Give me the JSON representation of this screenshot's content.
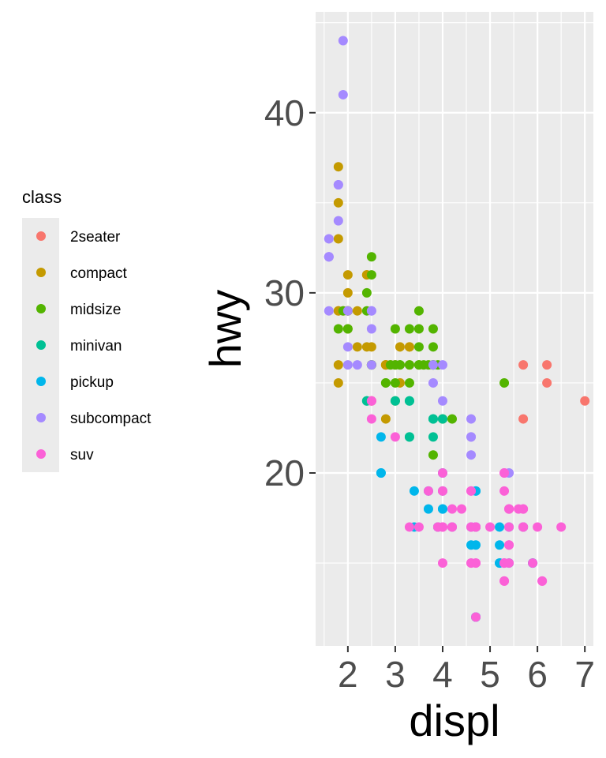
{
  "chart_data": {
    "type": "scatter",
    "xlabel": "displ",
    "ylabel": "hwy",
    "xlim": [
      1.32,
      7.18
    ],
    "ylim": [
      10.4,
      45.6
    ],
    "x_ticks": [
      2,
      3,
      4,
      5,
      6,
      7
    ],
    "y_ticks": [
      20,
      30,
      40
    ],
    "grid": true,
    "legend": {
      "title": "class",
      "position": "left",
      "entries": [
        {
          "label": "2seater",
          "color": "#F8766D"
        },
        {
          "label": "compact",
          "color": "#C49A00"
        },
        {
          "label": "midsize",
          "color": "#53B400"
        },
        {
          "label": "minivan",
          "color": "#00C094"
        },
        {
          "label": "pickup",
          "color": "#00B6EB"
        },
        {
          "label": "subcompact",
          "color": "#A58AFF"
        },
        {
          "label": "suv",
          "color": "#FB61D7"
        }
      ]
    },
    "series": [
      {
        "name": "2seater",
        "color": "#F8766D",
        "points": [
          [
            5.7,
            26
          ],
          [
            5.7,
            23
          ],
          [
            6.2,
            26
          ],
          [
            6.2,
            25
          ],
          [
            7.0,
            24
          ]
        ]
      },
      {
        "name": "compact",
        "color": "#C49A00",
        "points": [
          [
            1.8,
            29
          ],
          [
            1.8,
            29
          ],
          [
            2.0,
            31
          ],
          [
            2.0,
            30
          ],
          [
            2.8,
            26
          ],
          [
            2.8,
            26
          ],
          [
            3.1,
            27
          ],
          [
            1.8,
            26
          ],
          [
            1.8,
            25
          ],
          [
            2.0,
            28
          ],
          [
            2.0,
            29
          ],
          [
            2.8,
            26
          ],
          [
            3.1,
            25
          ],
          [
            2.2,
            27
          ],
          [
            2.2,
            29
          ],
          [
            2.4,
            31
          ],
          [
            2.4,
            31
          ],
          [
            3.0,
            26
          ],
          [
            3.3,
            26
          ],
          [
            3.3,
            27
          ],
          [
            3.3,
            27
          ],
          [
            1.8,
            35
          ],
          [
            1.8,
            37
          ],
          [
            1.8,
            33
          ],
          [
            2.5,
            27
          ],
          [
            2.5,
            26
          ],
          [
            2.5,
            24
          ],
          [
            2.8,
            23
          ],
          [
            1.9,
            29
          ],
          [
            2.0,
            29
          ],
          [
            2.4,
            27
          ],
          [
            2.9,
            26
          ],
          [
            2.0,
            29
          ]
        ]
      },
      {
        "name": "midsize",
        "color": "#53B400",
        "points": [
          [
            2.4,
            29
          ],
          [
            2.8,
            25
          ],
          [
            3.1,
            26
          ],
          [
            1.9,
            29
          ],
          [
            2.0,
            29
          ],
          [
            2.5,
            26
          ],
          [
            2.5,
            26
          ],
          [
            3.3,
            26
          ],
          [
            2.4,
            30
          ],
          [
            2.5,
            32
          ],
          [
            3.5,
            29
          ],
          [
            3.5,
            27
          ],
          [
            3.0,
            26
          ],
          [
            3.0,
            25
          ],
          [
            3.5,
            26
          ],
          [
            3.3,
            28
          ],
          [
            3.8,
            27
          ],
          [
            3.8,
            26
          ],
          [
            3.8,
            28
          ],
          [
            3.8,
            26
          ],
          [
            3.1,
            26
          ],
          [
            3.5,
            28
          ],
          [
            3.5,
            26
          ],
          [
            3.6,
            26
          ],
          [
            3.0,
            28
          ],
          [
            3.8,
            26
          ],
          [
            5.3,
            25
          ],
          [
            2.0,
            28
          ],
          [
            2.5,
            31
          ],
          [
            4.0,
            23
          ],
          [
            4.2,
            23
          ],
          [
            3.8,
            21
          ],
          [
            3.7,
            26
          ],
          [
            3.9,
            26
          ],
          [
            2.9,
            26
          ],
          [
            1.8,
            28
          ],
          [
            2.8,
            25
          ],
          [
            3.0,
            24
          ],
          [
            3.3,
            25
          ]
        ]
      },
      {
        "name": "minivan",
        "color": "#00C094",
        "points": [
          [
            2.4,
            24
          ],
          [
            3.0,
            24
          ],
          [
            3.3,
            22
          ],
          [
            3.3,
            22
          ],
          [
            3.3,
            24
          ],
          [
            3.3,
            24
          ],
          [
            3.8,
            22
          ],
          [
            3.8,
            23
          ],
          [
            4.0,
            23
          ],
          [
            2.4,
            24
          ],
          [
            3.8,
            23
          ]
        ]
      },
      {
        "name": "pickup",
        "color": "#00B6EB",
        "points": [
          [
            3.7,
            19
          ],
          [
            3.7,
            18
          ],
          [
            3.9,
            17
          ],
          [
            3.9,
            17
          ],
          [
            4.7,
            19
          ],
          [
            4.7,
            19
          ],
          [
            4.7,
            12
          ],
          [
            5.2,
            17
          ],
          [
            5.2,
            15
          ],
          [
            5.7,
            17
          ],
          [
            5.9,
            15
          ],
          [
            4.7,
            17
          ],
          [
            4.7,
            17
          ],
          [
            4.7,
            12
          ],
          [
            5.2,
            16
          ],
          [
            5.2,
            15
          ],
          [
            4.6,
            17
          ],
          [
            5.4,
            17
          ],
          [
            5.4,
            15
          ],
          [
            2.7,
            20
          ],
          [
            2.7,
            20
          ],
          [
            2.7,
            22
          ],
          [
            3.4,
            17
          ],
          [
            3.4,
            19
          ],
          [
            4.0,
            18
          ],
          [
            4.0,
            20
          ],
          [
            4.7,
            16
          ],
          [
            5.7,
            17
          ],
          [
            5.9,
            15
          ],
          [
            4.6,
            16
          ],
          [
            4.2,
            17
          ],
          [
            4.0,
            19
          ],
          [
            4.0,
            18
          ]
        ]
      },
      {
        "name": "subcompact",
        "color": "#A58AFF",
        "points": [
          [
            3.8,
            26
          ],
          [
            3.8,
            25
          ],
          [
            4.0,
            26
          ],
          [
            4.0,
            24
          ],
          [
            4.6,
            21
          ],
          [
            4.6,
            22
          ],
          [
            4.6,
            23
          ],
          [
            4.6,
            22
          ],
          [
            5.4,
            20
          ],
          [
            1.6,
            33
          ],
          [
            1.6,
            32
          ],
          [
            1.6,
            32
          ],
          [
            1.6,
            29
          ],
          [
            1.6,
            32
          ],
          [
            1.8,
            34
          ],
          [
            1.8,
            36
          ],
          [
            1.8,
            36
          ],
          [
            2.0,
            29
          ],
          [
            2.0,
            26
          ],
          [
            1.9,
            44
          ],
          [
            1.9,
            41
          ],
          [
            2.5,
            26
          ],
          [
            2.5,
            28
          ],
          [
            2.5,
            29
          ],
          [
            2.5,
            29
          ],
          [
            2.0,
            27
          ],
          [
            2.2,
            26
          ]
        ]
      },
      {
        "name": "suv",
        "color": "#FB61D7",
        "points": [
          [
            5.3,
            20
          ],
          [
            5.3,
            15
          ],
          [
            5.3,
            20
          ],
          [
            5.7,
            17
          ],
          [
            6.0,
            17
          ],
          [
            5.3,
            15
          ],
          [
            5.3,
            15
          ],
          [
            5.7,
            17
          ],
          [
            6.5,
            17
          ],
          [
            3.7,
            19
          ],
          [
            4.7,
            17
          ],
          [
            4.7,
            15
          ],
          [
            4.7,
            17
          ],
          [
            5.7,
            18
          ],
          [
            6.1,
            14
          ],
          [
            4.0,
            17
          ],
          [
            4.2,
            17
          ],
          [
            4.4,
            18
          ],
          [
            4.6,
            17
          ],
          [
            5.4,
            17
          ],
          [
            5.4,
            16
          ],
          [
            5.4,
            18
          ],
          [
            4.0,
            17
          ],
          [
            4.0,
            19
          ],
          [
            4.6,
            19
          ],
          [
            5.0,
            17
          ],
          [
            4.2,
            18
          ],
          [
            4.2,
            17
          ],
          [
            4.6,
            15
          ],
          [
            4.6,
            15
          ],
          [
            5.4,
            18
          ],
          [
            5.4,
            18
          ],
          [
            2.5,
            24
          ],
          [
            2.5,
            23
          ],
          [
            2.5,
            24
          ],
          [
            3.0,
            22
          ],
          [
            3.3,
            17
          ],
          [
            3.9,
            17
          ],
          [
            4.0,
            15
          ],
          [
            4.0,
            19
          ],
          [
            4.7,
            17
          ],
          [
            4.7,
            12
          ],
          [
            5.7,
            18
          ],
          [
            4.6,
            17
          ],
          [
            5.4,
            16
          ],
          [
            5.4,
            15
          ],
          [
            4.0,
            20
          ],
          [
            5.3,
            14
          ],
          [
            5.6,
            18
          ],
          [
            5.9,
            15
          ],
          [
            6.1,
            14
          ],
          [
            3.5,
            17
          ],
          [
            4.0,
            17
          ],
          [
            4.7,
            15
          ],
          [
            3.9,
            17
          ],
          [
            4.6,
            19
          ],
          [
            5.3,
            19
          ],
          [
            5.3,
            14
          ],
          [
            5.7,
            17
          ]
        ]
      }
    ]
  }
}
